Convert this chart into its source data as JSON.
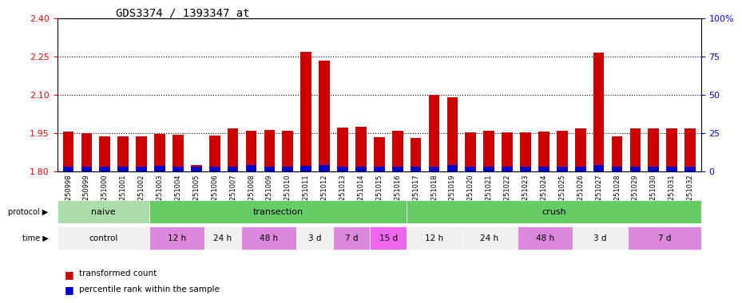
{
  "title": "GDS3374 / 1393347_at",
  "samples": [
    "GSM250998",
    "GSM250999",
    "GSM251000",
    "GSM251001",
    "GSM251002",
    "GSM251003",
    "GSM251004",
    "GSM251005",
    "GSM251006",
    "GSM251007",
    "GSM251008",
    "GSM251009",
    "GSM251010",
    "GSM251011",
    "GSM251012",
    "GSM251013",
    "GSM251014",
    "GSM251015",
    "GSM251016",
    "GSM251017",
    "GSM251018",
    "GSM251019",
    "GSM251020",
    "GSM251021",
    "GSM251022",
    "GSM251023",
    "GSM251024",
    "GSM251025",
    "GSM251026",
    "GSM251027",
    "GSM251028",
    "GSM251029",
    "GSM251030",
    "GSM251031",
    "GSM251032"
  ],
  "red_values": [
    1.955,
    1.95,
    1.938,
    1.938,
    1.937,
    1.948,
    1.945,
    1.826,
    1.94,
    1.968,
    1.96,
    1.961,
    1.958,
    2.27,
    2.235,
    1.971,
    1.975,
    1.933,
    1.96,
    1.932,
    2.099,
    2.09,
    1.952,
    1.96,
    1.952,
    1.952,
    1.955,
    1.96,
    1.968,
    2.265,
    1.938,
    1.969,
    1.968,
    1.969,
    1.968
  ],
  "blue_values": [
    0.02,
    0.02,
    0.02,
    0.02,
    0.018,
    0.022,
    0.02,
    0.02,
    0.02,
    0.02,
    0.025,
    0.02,
    0.02,
    0.022,
    0.025,
    0.02,
    0.02,
    0.02,
    0.02,
    0.02,
    0.02,
    0.025,
    0.02,
    0.02,
    0.02,
    0.02,
    0.02,
    0.02,
    0.02,
    0.025,
    0.02,
    0.02,
    0.02,
    0.02,
    0.02
  ],
  "y_min": 1.8,
  "y_max": 2.4,
  "y_ticks_left": [
    1.8,
    1.95,
    2.1,
    2.25,
    2.4
  ],
  "y_ticks_right": [
    0,
    25,
    50,
    75,
    100
  ],
  "y_right_labels": [
    "0",
    "25",
    "50",
    "75",
    "100%"
  ],
  "grid_lines": [
    1.95,
    2.1,
    2.25
  ],
  "protocol_groups": [
    {
      "label": "naive",
      "start": 0,
      "end": 4,
      "color": "#90ee90"
    },
    {
      "label": "transection",
      "start": 5,
      "end": 18,
      "color": "#66cc66"
    },
    {
      "label": "crush",
      "start": 19,
      "end": 34,
      "color": "#66cc66"
    }
  ],
  "time_groups": [
    {
      "label": "control",
      "start": 0,
      "end": 4,
      "color": "#f0f0f0"
    },
    {
      "label": "12 h",
      "start": 5,
      "end": 7,
      "color": "#dd88dd"
    },
    {
      "label": "24 h",
      "start": 8,
      "end": 9,
      "color": "#f0f0f0"
    },
    {
      "label": "48 h",
      "start": 10,
      "end": 12,
      "color": "#dd88dd"
    },
    {
      "label": "3 d",
      "start": 13,
      "end": 14,
      "color": "#f0f0f0"
    },
    {
      "label": "7 d",
      "start": 15,
      "end": 16,
      "color": "#dd88dd"
    },
    {
      "label": "15 d",
      "start": 17,
      "end": 18,
      "color": "#ee66ee"
    },
    {
      "label": "12 h",
      "start": 19,
      "end": 21,
      "color": "#f0f0f0"
    },
    {
      "label": "24 h",
      "start": 22,
      "end": 24,
      "color": "#f0f0f0"
    },
    {
      "label": "48 h",
      "start": 25,
      "end": 27,
      "color": "#dd88dd"
    },
    {
      "label": "3 d",
      "start": 28,
      "end": 30,
      "color": "#f0f0f0"
    },
    {
      "label": "7 d",
      "start": 31,
      "end": 34,
      "color": "#dd88dd"
    }
  ],
  "bar_color_red": "#cc0000",
  "bar_color_blue": "#0000cc",
  "bar_width": 0.6,
  "legend_red": "transformed count",
  "legend_blue": "percentile rank within the sample"
}
